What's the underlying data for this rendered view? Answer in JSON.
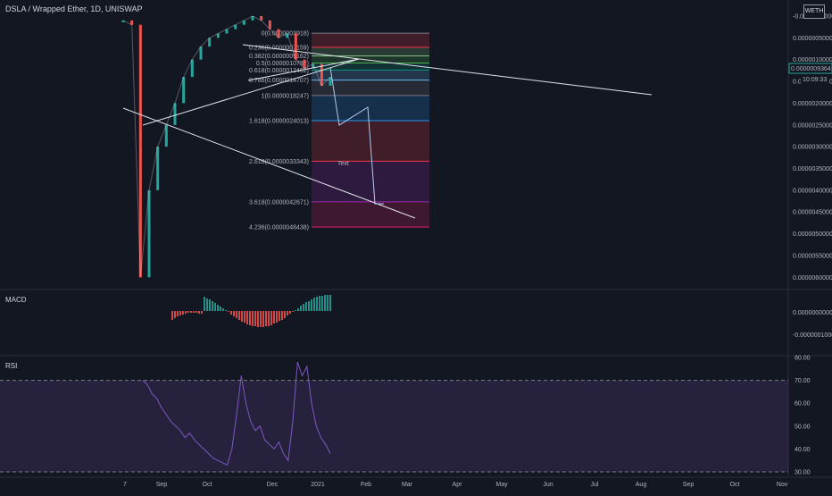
{
  "header": {
    "title": "DSLA / Wrapped Ether, 1D, UNISWAP",
    "badge": "WETH"
  },
  "panes": {
    "macd_label": "MACD",
    "rsi_label": "RSI"
  },
  "price_tag": {
    "value": "0.0000009364",
    "countdown": "10:09:33"
  },
  "drawing": {
    "text_label": "Text"
  },
  "chart_data": [
    {
      "type": "line",
      "pane": "price",
      "y_axis_inverted": true,
      "y_ticks": [
        "-0.0000000000",
        "0.0000005000",
        "0.0000010000",
        "0.0000015000",
        "0.0000020000",
        "0.0000025000",
        "0.0000030000",
        "0.0000035000",
        "0.0000040000",
        "0.0000045000",
        "0.0000050000",
        "0.0000055000",
        "0.0000060000"
      ],
      "x_ticks": [
        "7",
        "Sep",
        "Oct",
        "Dec",
        "2021",
        "Feb",
        "Mar",
        "Apr",
        "May",
        "Jun",
        "Jul",
        "Aug",
        "Sep",
        "Oct",
        "Nov"
      ],
      "fib_levels": [
        {
          "label": "0(0.0000003918)",
          "value": 3.918e-07,
          "color": "#787b86"
        },
        {
          "label": "0.236(0.0000007159)",
          "value": 7.159e-07,
          "color": "#f23645"
        },
        {
          "label": "0.382(0.0000009162)",
          "value": 9.162e-07,
          "color": "#81c784"
        },
        {
          "label": "0.5(0.0000010782)",
          "value": 1.0782e-06,
          "color": "#4caf50"
        },
        {
          "label": "0.618(0.0000012402)",
          "value": 1.2402e-06,
          "color": "#089981"
        },
        {
          "label": "0.786(0.0000014707)",
          "value": 1.4707e-06,
          "color": "#64b5f6"
        },
        {
          "label": "1(0.0000018247)",
          "value": 1.8247e-06,
          "color": "#787b86"
        },
        {
          "label": "1.618(0.0000024013)",
          "value": 2.4013e-06,
          "color": "#2196f3"
        },
        {
          "label": "2.618(0.0000033343)",
          "value": 3.3343e-06,
          "color": "#f23645"
        },
        {
          "label": "3.618(0.0000042671)",
          "value": 4.2671e-06,
          "color": "#9c27b0"
        },
        {
          "label": "4.236(0.0000048438)",
          "value": 4.8438e-06,
          "color": "#e91e63"
        }
      ],
      "series": [
        {
          "values": [
            1e-07,
            2e-07,
            6e-06,
            4e-06,
            3e-06,
            2.5e-06,
            2e-06,
            1.4e-06,
            1e-06,
            7e-07,
            5e-07,
            4e-07,
            3e-07,
            2e-07,
            1e-07,
            0.0,
            1e-07,
            3e-07,
            5e-07,
            4e-07,
            1e-06,
            1.2e-06,
            1.1e-06,
            1.6e-06,
            1.4e-06
          ]
        }
      ]
    },
    {
      "type": "bar",
      "pane": "macd",
      "y_ticks": [
        "0.0000000000",
        "-0.0000001000"
      ]
    },
    {
      "type": "line",
      "pane": "rsi",
      "y_ticks": [
        "80.00",
        "70.00",
        "60.00",
        "50.00",
        "40.00",
        "30.00"
      ],
      "ylim": [
        30,
        80
      ],
      "bands": [
        30,
        70
      ],
      "series": [
        {
          "values": [
            70,
            68,
            64,
            62,
            58,
            55,
            52,
            50,
            48,
            45,
            47,
            44,
            42,
            40,
            38,
            36,
            35,
            34,
            33,
            40,
            55,
            72,
            60,
            52,
            48,
            50,
            44,
            42,
            40,
            43,
            38,
            35,
            52,
            78,
            72,
            76,
            60,
            50,
            45,
            42,
            38
          ]
        }
      ]
    }
  ]
}
